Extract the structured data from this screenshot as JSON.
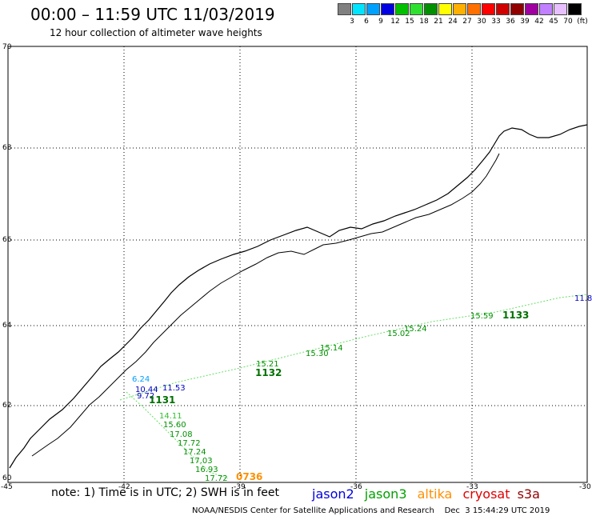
{
  "header": {
    "title": "00:00 – 11:59 UTC 11/03/2019",
    "subtitle": "12 hour collection of altimeter wave heights"
  },
  "colorbar": {
    "colors": [
      "#808080",
      "#00e5ff",
      "#00a0ff",
      "#0000e0",
      "#00c000",
      "#30e030",
      "#009000",
      "#ffff00",
      "#ffb000",
      "#ff7000",
      "#ff0000",
      "#d00000",
      "#900000",
      "#a000a0",
      "#c080ff",
      "#e8c0ff",
      "#000000"
    ],
    "labels": [
      "3",
      "6",
      "9",
      "12",
      "15",
      "18",
      "21",
      "24",
      "27",
      "30",
      "33",
      "36",
      "39",
      "42",
      "45",
      "70",
      "(ft)"
    ]
  },
  "map": {
    "lat_ticks": [
      "70",
      "68",
      "66",
      "64",
      "62",
      "60"
    ],
    "lon_ticks": [
      "-45",
      "-42",
      "-39",
      "-36",
      "-33",
      "-30"
    ]
  },
  "track_values": {
    "seg_1131": [
      "6.24",
      "10.44",
      "11.53",
      "9.72"
    ],
    "pass_1131": "1131",
    "seg_1131_down": [
      "14.11",
      "15.60",
      "17.08",
      "17.72",
      "17.24",
      "17.03",
      "16.93",
      "17.72"
    ],
    "pass_1132": "1132",
    "seg_1132_mid": [
      "15.21",
      "15.30",
      "15.14",
      "15.02",
      "15.24",
      "15.59"
    ],
    "pass_1133": "1133",
    "pass_0736": "0736",
    "edge_value": "11.8"
  },
  "note": {
    "text": "note: 1) Time is in UTC; 2) SWH is in feet",
    "satellites": [
      {
        "name": "jason2",
        "color": "#0000e0"
      },
      {
        "name": "jason3",
        "color": "#00a000"
      },
      {
        "name": "altika",
        "color": "#ff9000"
      },
      {
        "name": "cryosat",
        "color": "#e00000"
      },
      {
        "name": "s3a",
        "color": "#900000"
      }
    ]
  },
  "footer": "NOAA/NESDIS Center for Satellite Applications and Research    Dec  3 15:44:29 UTC 2019"
}
